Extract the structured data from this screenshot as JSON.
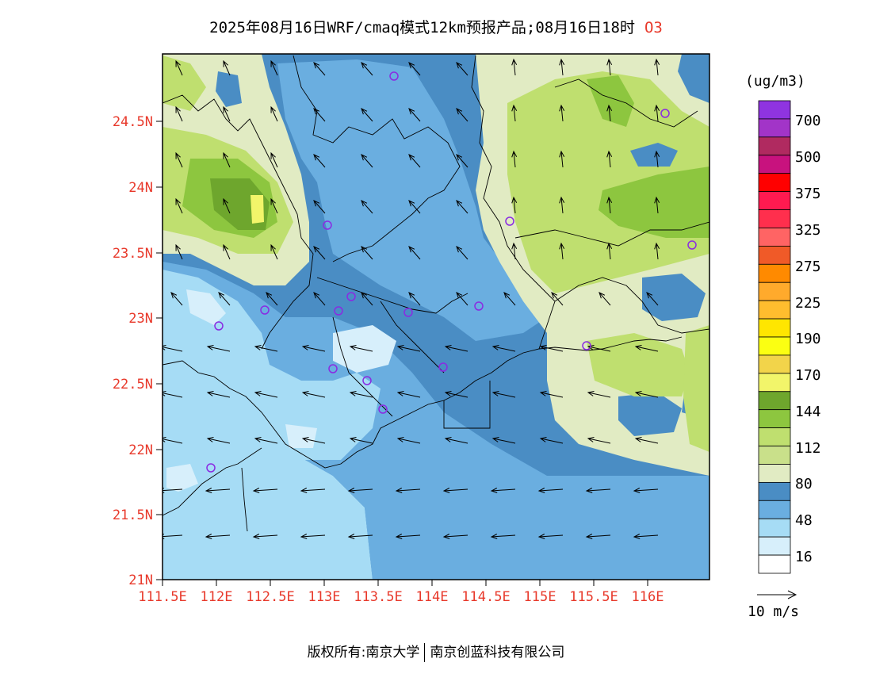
{
  "header": {
    "title": "2025年08月16日WRF/cmaq模式12km预报产品;08月16日18时",
    "species": "O3"
  },
  "map": {
    "lat_ticks": [
      "24.5N",
      "24N",
      "23.5N",
      "23N",
      "22.5N",
      "22N",
      "21.5N",
      "21N"
    ],
    "lon_ticks": [
      "111.5E",
      "112E",
      "112.5E",
      "113E",
      "113.5E",
      "114E",
      "114.5E",
      "115E",
      "115.5E",
      "116E"
    ],
    "wind_reference_label": "10 m/s",
    "station_marker_color": "#8a2be2"
  },
  "colorbar": {
    "unit": "(ug/m3)",
    "labels": [
      "700",
      "500",
      "375",
      "325",
      "275",
      "225",
      "190",
      "170",
      "144",
      "112",
      "80",
      "48",
      "16"
    ],
    "colors": [
      "#8f34e0",
      "#a234c8",
      "#b02a60",
      "#c8127e",
      "#ff0000",
      "#ff1a50",
      "#ff2f4d",
      "#ff6464",
      "#f05a28",
      "#ff8a00",
      "#ffaa2c",
      "#ffbd2e",
      "#ffe600",
      "#fbff12",
      "#f2d44a",
      "#f2f56a",
      "#6ea62d",
      "#8dc63f",
      "#bfdf6f",
      "#c9e08a",
      "#e1ebc3",
      "#4a8dc4",
      "#6aaee0",
      "#a6dcf5",
      "#d7effb",
      "#ffffff"
    ]
  },
  "footer": {
    "left": "版权所有:南京大学",
    "right": "南京创蓝科技有限公司"
  }
}
